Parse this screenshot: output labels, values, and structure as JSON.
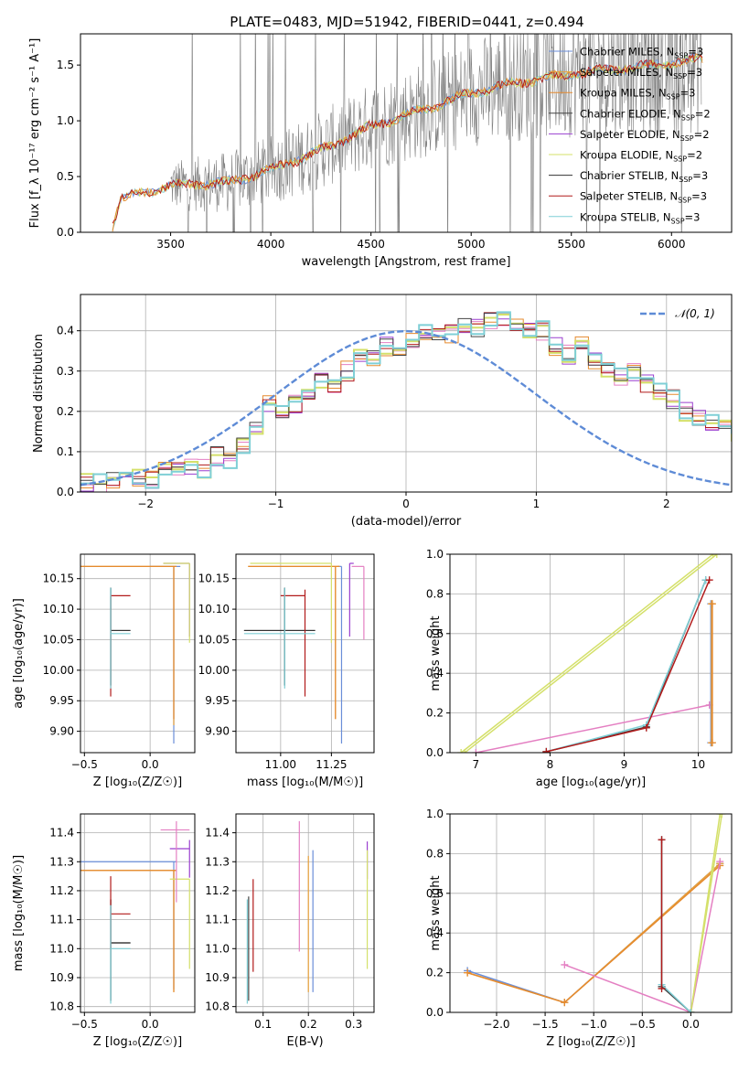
{
  "figure_title": "PLATE=0483, MJD=51942, FIBERID=0441, z=0.494",
  "colors": {
    "series": [
      "#6a8ed8",
      "#e8a13a",
      "#e58a2e",
      "#444444",
      "#9a3fcf",
      "#d4e06a",
      "#333333",
      "#b11a1a",
      "#7fcfd6"
    ],
    "data_spectrum": "#808080",
    "normal_curve": "#5e8bd6",
    "extra_pink": "#e47fc2"
  },
  "chart_data": [
    {
      "id": "spectrum",
      "type": "line",
      "title": "PLATE=0483, MJD=51942, FIBERID=0441, z=0.494",
      "xlabel": "wavelength [Angstrom, rest frame]",
      "ylabel": "Flux [f_λ 10⁻¹⁷ erg cm⁻² s⁻¹ A⁻¹]",
      "xlim": [
        3050,
        6300
      ],
      "ylim": [
        0,
        1.78
      ],
      "xticks": [
        3500,
        4000,
        4500,
        5000,
        5500,
        6000
      ],
      "yticks": [
        0.0,
        0.5,
        1.0,
        1.5
      ],
      "grid": false,
      "legend_position": "top-right",
      "legend": [
        {
          "label": "Chabrier MILES, N",
          "sub": "SSP",
          "suffix": "=3"
        },
        {
          "label": "Salpeter MILES, N",
          "sub": "SSP",
          "suffix": "=3"
        },
        {
          "label": "Kroupa MILES, N",
          "sub": "SSP",
          "suffix": "=3"
        },
        {
          "label": "Chabrier ELODIE, N",
          "sub": "SSP",
          "suffix": "=2"
        },
        {
          "label": "Salpeter ELODIE, N",
          "sub": "SSP",
          "suffix": "=2"
        },
        {
          "label": "Kroupa ELODIE, N",
          "sub": "SSP",
          "suffix": "=2"
        },
        {
          "label": "Chabrier STELIB, N",
          "sub": "SSP",
          "suffix": "=3"
        },
        {
          "label": "Salpeter STELIB, N",
          "sub": "SSP",
          "suffix": "=3"
        },
        {
          "label": "Kroupa STELIB, N",
          "sub": "SSP",
          "suffix": "=3"
        }
      ],
      "model_trend": {
        "x": [
          3200,
          3250,
          3500,
          3800,
          4000,
          4200,
          4300,
          4500,
          4800,
          5000,
          5200,
          5500,
          5800,
          6000,
          6150
        ],
        "y": [
          0.0,
          0.3,
          0.42,
          0.45,
          0.56,
          0.7,
          0.78,
          0.95,
          1.12,
          1.25,
          1.33,
          1.42,
          1.48,
          1.52,
          1.55
        ]
      },
      "data_range": [
        3500,
        6150
      ]
    },
    {
      "id": "residuals",
      "type": "step",
      "xlabel": "(data-model)/error",
      "ylabel": "Normed distribution",
      "xlim": [
        -2.5,
        2.5
      ],
      "ylim": [
        0,
        0.49
      ],
      "xticks": [
        -2,
        -1,
        0,
        1,
        2
      ],
      "yticks": [
        0.0,
        0.1,
        0.2,
        0.3,
        0.4
      ],
      "grid": true,
      "legend_position": "top-right",
      "legend": [
        "𝒩(0, 1)"
      ],
      "bin_width": 0.1,
      "bin_start": -2.5,
      "hist_base": [
        0.02,
        0.02,
        0.03,
        0.03,
        0.04,
        0.03,
        0.06,
        0.05,
        0.06,
        0.06,
        0.09,
        0.08,
        0.12,
        0.15,
        0.22,
        0.2,
        0.22,
        0.24,
        0.27,
        0.26,
        0.3,
        0.34,
        0.33,
        0.36,
        0.35,
        0.38,
        0.4,
        0.4,
        0.39,
        0.42,
        0.41,
        0.42,
        0.43,
        0.42,
        0.4,
        0.4,
        0.36,
        0.34,
        0.37,
        0.33,
        0.31,
        0.29,
        0.3,
        0.27,
        0.25,
        0.23,
        0.2,
        0.19,
        0.17,
        0.16,
        0.14,
        0.15,
        0.13,
        0.12,
        0.1,
        0.09,
        0.08,
        0.07,
        0.06,
        0.05,
        0.05,
        0.05,
        0.04,
        0.04,
        0.03,
        0.03,
        0.02,
        0.02,
        0.02,
        0.01,
        0.01,
        0.01
      ],
      "normal_curve": {
        "mu": 0,
        "sigma": 1
      }
    },
    {
      "id": "age_vs_Z",
      "type": "errorbar",
      "xlabel": "Z [log₁₀(Z/Z☉)]",
      "ylabel": "age  [log₁₀(age/yr)]",
      "xlim": [
        -0.53,
        0.34
      ],
      "ylim": [
        9.865,
        10.19
      ],
      "xticks": [
        -0.5,
        0.0
      ],
      "yticks": [
        9.9,
        9.95,
        10.0,
        10.05,
        10.1,
        10.15
      ],
      "grid": true,
      "points": [
        {
          "s": 0,
          "x": 0.18,
          "y": 10.17,
          "xe": [
            0.18,
            0.05
          ],
          "ye": [
            0.29,
            0.0
          ]
        },
        {
          "s": 1,
          "x": 0.18,
          "y": 10.17,
          "xe": [
            0.72,
            0.02
          ],
          "ye": [
            0.26,
            0.0
          ]
        },
        {
          "s": 2,
          "x": 0.18,
          "y": 10.17,
          "xe": [
            0.72,
            0.02
          ],
          "ye": [
            0.25,
            0.0
          ]
        },
        {
          "s": 3,
          "x": -0.3,
          "y": 10.065,
          "xe": [
            0.0,
            0.15
          ],
          "ye": [
            0.09,
            0.07
          ]
        },
        {
          "s": 4,
          "x": 0.3,
          "y": 10.175,
          "xe": [
            0.2,
            0.0
          ],
          "ye": [
            0.12,
            0.0
          ]
        },
        {
          "s": 5,
          "x": 0.3,
          "y": 10.175,
          "xe": [
            0.2,
            0.0
          ],
          "ye": [
            0.13,
            0.0
          ]
        },
        {
          "s": 6,
          "x": -0.3,
          "y": 10.065,
          "xe": [
            0.0,
            0.15
          ],
          "ye": [
            0.09,
            0.07
          ]
        },
        {
          "s": 7,
          "x": -0.3,
          "y": 10.122,
          "xe": [
            0.0,
            0.15
          ],
          "ye": [
            0.165,
            0.0
          ]
        },
        {
          "s": 8,
          "x": -0.3,
          "y": 10.06,
          "xe": [
            0.0,
            0.15
          ],
          "ye": [
            0.09,
            0.075
          ]
        }
      ]
    },
    {
      "id": "age_vs_mass",
      "type": "errorbar",
      "xlabel": "mass [log₁₀(M/M☉)]",
      "ylabel": "",
      "xlim": [
        10.78,
        11.46
      ],
      "ylim": [
        9.865,
        10.19
      ],
      "xticks": [
        11.0,
        11.25
      ],
      "yticks": [
        9.9,
        9.95,
        10.0,
        10.05,
        10.1,
        10.15
      ],
      "grid": true,
      "points": [
        {
          "s": 0,
          "x": 11.3,
          "y": 10.17,
          "xe": [
            0.02,
            0.0
          ],
          "ye": [
            0.29,
            0.0
          ]
        },
        {
          "s": 1,
          "x": 11.27,
          "y": 10.17,
          "xe": [
            0.43,
            0.02
          ],
          "ye": [
            0.25,
            0.0
          ]
        },
        {
          "s": 2,
          "x": 11.27,
          "y": 10.17,
          "xe": [
            0.43,
            0.02
          ],
          "ye": [
            0.25,
            0.0
          ]
        },
        {
          "s": 3,
          "x": 11.02,
          "y": 10.065,
          "xe": [
            0.2,
            0.15
          ],
          "ye": [
            0.09,
            0.07
          ]
        },
        {
          "s": 4,
          "x": 11.34,
          "y": 10.175,
          "xe": [
            0.0,
            0.02
          ],
          "ye": [
            0.12,
            0.0
          ]
        },
        {
          "s": 5,
          "x": 11.25,
          "y": 10.175,
          "xe": [
            0.4,
            0.0
          ],
          "ye": [
            0.13,
            0.0
          ]
        },
        {
          "s": 6,
          "x": 11.02,
          "y": 10.065,
          "xe": [
            0.2,
            0.15
          ],
          "ye": [
            0.09,
            0.07
          ]
        },
        {
          "s": 7,
          "x": 11.12,
          "y": 10.122,
          "xe": [
            0.12,
            0.0
          ],
          "ye": [
            0.165,
            0.01
          ]
        },
        {
          "s": 8,
          "x": 11.02,
          "y": 10.06,
          "xe": [
            0.2,
            0.15
          ],
          "ye": [
            0.09,
            0.075
          ]
        },
        {
          "s": 9,
          "x": 11.41,
          "y": 10.17,
          "xe": [
            0.06,
            0.0
          ],
          "ye": [
            0.12,
            0.0
          ]
        }
      ]
    },
    {
      "id": "weight_vs_age",
      "type": "line",
      "xlabel": "age  [log₁₀(age/yr)]",
      "ylabel": "mass weight",
      "xlim": [
        6.65,
        10.45
      ],
      "ylim": [
        0.0,
        1.0
      ],
      "xticks": [
        7,
        8,
        9,
        10
      ],
      "yticks": [
        0.0,
        0.2,
        0.4,
        0.6,
        0.8,
        1.0
      ],
      "grid": true,
      "series": [
        {
          "s": 5,
          "x": [
            6.8,
            10.2
          ],
          "y": [
            0.0,
            1.0
          ]
        },
        {
          "s": 5,
          "x": [
            6.85,
            10.25
          ],
          "y": [
            0.0,
            1.0
          ]
        },
        {
          "s": 9,
          "x": [
            7.0,
            10.15
          ],
          "y": [
            0.0,
            0.24
          ]
        },
        {
          "s": 3,
          "x": [
            7.95,
            9.3,
            10.1
          ],
          "y": [
            0.005,
            0.13,
            0.87
          ]
        },
        {
          "s": 8,
          "x": [
            7.95,
            9.3,
            10.1
          ],
          "y": [
            0.005,
            0.14,
            0.87
          ]
        },
        {
          "s": 7,
          "x": [
            7.95,
            9.3,
            10.15
          ],
          "y": [
            0.005,
            0.125,
            0.87
          ]
        },
        {
          "s": 0,
          "x": [
            10.17,
            10.17
          ],
          "y": [
            0.05,
            0.75
          ]
        },
        {
          "s": 1,
          "x": [
            10.18,
            10.18
          ],
          "y": [
            0.05,
            0.75
          ]
        },
        {
          "s": 2,
          "x": [
            10.19,
            10.19
          ],
          "y": [
            0.05,
            0.75
          ]
        }
      ]
    },
    {
      "id": "mass_vs_Z",
      "type": "errorbar",
      "xlabel": "Z [log₁₀(Z/Z☉)]",
      "ylabel": "mass [log₁₀(M/M☉)]",
      "xlim": [
        -0.53,
        0.34
      ],
      "ylim": [
        10.78,
        11.465
      ],
      "xticks": [
        -0.5,
        0.0
      ],
      "yticks": [
        10.8,
        10.9,
        11.0,
        11.1,
        11.2,
        11.3,
        11.4
      ],
      "grid": true,
      "points": [
        {
          "s": 0,
          "x": 0.18,
          "y": 11.3,
          "xe": [
            0.72,
            0.02
          ],
          "ye": [
            0.44,
            0.0
          ]
        },
        {
          "s": 1,
          "x": 0.18,
          "y": 11.27,
          "xe": [
            0.72,
            0.02
          ],
          "ye": [
            0.42,
            0.0
          ]
        },
        {
          "s": 2,
          "x": 0.18,
          "y": 11.27,
          "xe": [
            0.72,
            0.02
          ],
          "ye": [
            0.42,
            0.0
          ]
        },
        {
          "s": 3,
          "x": -0.3,
          "y": 11.02,
          "xe": [
            0.0,
            0.15
          ],
          "ye": [
            0.2,
            0.15
          ]
        },
        {
          "s": 4,
          "x": 0.3,
          "y": 11.345,
          "xe": [
            0.15,
            0.0
          ],
          "ye": [
            0.1,
            0.03
          ]
        },
        {
          "s": 5,
          "x": 0.3,
          "y": 11.24,
          "xe": [
            0.15,
            0.0
          ],
          "ye": [
            0.31,
            0.0
          ]
        },
        {
          "s": 6,
          "x": -0.3,
          "y": 11.02,
          "xe": [
            0.0,
            0.15
          ],
          "ye": [
            0.2,
            0.15
          ]
        },
        {
          "s": 7,
          "x": -0.3,
          "y": 11.12,
          "xe": [
            0.0,
            0.15
          ],
          "ye": [
            0.12,
            0.13
          ]
        },
        {
          "s": 8,
          "x": -0.3,
          "y": 11.0,
          "xe": [
            0.0,
            0.15
          ],
          "ye": [
            0.19,
            0.15
          ]
        },
        {
          "s": 9,
          "x": 0.2,
          "y": 11.41,
          "xe": [
            0.12,
            0.1
          ],
          "ye": [
            0.25,
            0.03
          ]
        }
      ]
    },
    {
      "id": "mass_vs_EBV",
      "type": "errorbar",
      "xlabel": "E(B-V)",
      "ylabel": "",
      "xlim": [
        0.04,
        0.345
      ],
      "ylim": [
        10.78,
        11.465
      ],
      "xticks": [
        0.1,
        0.2,
        0.3
      ],
      "yticks": [
        10.8,
        10.9,
        11.0,
        11.1,
        11.2,
        11.3,
        11.4
      ],
      "grid": true,
      "points": [
        {
          "s": 3,
          "x": 0.068,
          "y": 11.0,
          "xe": [
            0,
            0
          ],
          "ye": [
            0.18,
            0.18
          ]
        },
        {
          "s": 8,
          "x": 0.065,
          "y": 11.0,
          "xe": [
            0,
            0
          ],
          "ye": [
            0.19,
            0.17
          ]
        },
        {
          "s": 7,
          "x": 0.078,
          "y": 11.1,
          "xe": [
            0,
            0
          ],
          "ye": [
            0.18,
            0.14
          ]
        },
        {
          "s": 9,
          "x": 0.18,
          "y": 11.3,
          "xe": [
            0,
            0
          ],
          "ye": [
            0.31,
            0.14
          ]
        },
        {
          "s": 1,
          "x": 0.2,
          "y": 11.1,
          "xe": [
            0,
            0
          ],
          "ye": [
            0.25,
            0.22
          ]
        },
        {
          "s": 0,
          "x": 0.21,
          "y": 11.1,
          "xe": [
            0,
            0
          ],
          "ye": [
            0.25,
            0.24
          ]
        },
        {
          "s": 4,
          "x": 0.33,
          "y": 11.3,
          "xe": [
            0,
            0
          ],
          "ye": [
            0.06,
            0.07
          ]
        },
        {
          "s": 5,
          "x": 0.33,
          "y": 11.1,
          "xe": [
            0,
            0
          ],
          "ye": [
            0.17,
            0.24
          ]
        }
      ]
    },
    {
      "id": "weight_vs_Z",
      "type": "line",
      "xlabel": "Z [log₁₀(Z/Z☉)]",
      "ylabel": "mass weight",
      "xlim": [
        -2.48,
        0.42
      ],
      "ylim": [
        0.0,
        1.0
      ],
      "xticks": [
        -2.0,
        -1.5,
        -1.0,
        -0.5,
        0.0
      ],
      "yticks": [
        0.0,
        0.2,
        0.4,
        0.6,
        0.8,
        1.0
      ],
      "grid": true,
      "series": [
        {
          "s": 0,
          "x": [
            -2.3,
            -1.3,
            0.3
          ],
          "y": [
            0.21,
            0.05,
            0.75
          ]
        },
        {
          "s": 1,
          "x": [
            -2.3,
            -1.3,
            0.3
          ],
          "y": [
            0.2,
            0.05,
            0.75
          ]
        },
        {
          "s": 2,
          "x": [
            -2.3,
            -1.3,
            0.3
          ],
          "y": [
            0.2,
            0.05,
            0.74
          ]
        },
        {
          "s": 9,
          "x": [
            -1.3,
            0.0,
            0.3
          ],
          "y": [
            0.24,
            0.0,
            0.76
          ]
        },
        {
          "s": 5,
          "x": [
            0.0,
            0.3
          ],
          "y": [
            0.0,
            1.0
          ]
        },
        {
          "s": 5,
          "x": [
            0.0,
            0.32
          ],
          "y": [
            0.0,
            1.0
          ]
        },
        {
          "s": 3,
          "x": [
            -0.3,
            -0.3,
            0.0
          ],
          "y": [
            0.87,
            0.13,
            0.0
          ]
        },
        {
          "s": 8,
          "x": [
            -0.3,
            -0.3,
            0.0
          ],
          "y": [
            0.87,
            0.14,
            0.0
          ]
        },
        {
          "s": 7,
          "x": [
            -0.3,
            -0.3
          ],
          "y": [
            0.87,
            0.12
          ]
        }
      ]
    }
  ]
}
